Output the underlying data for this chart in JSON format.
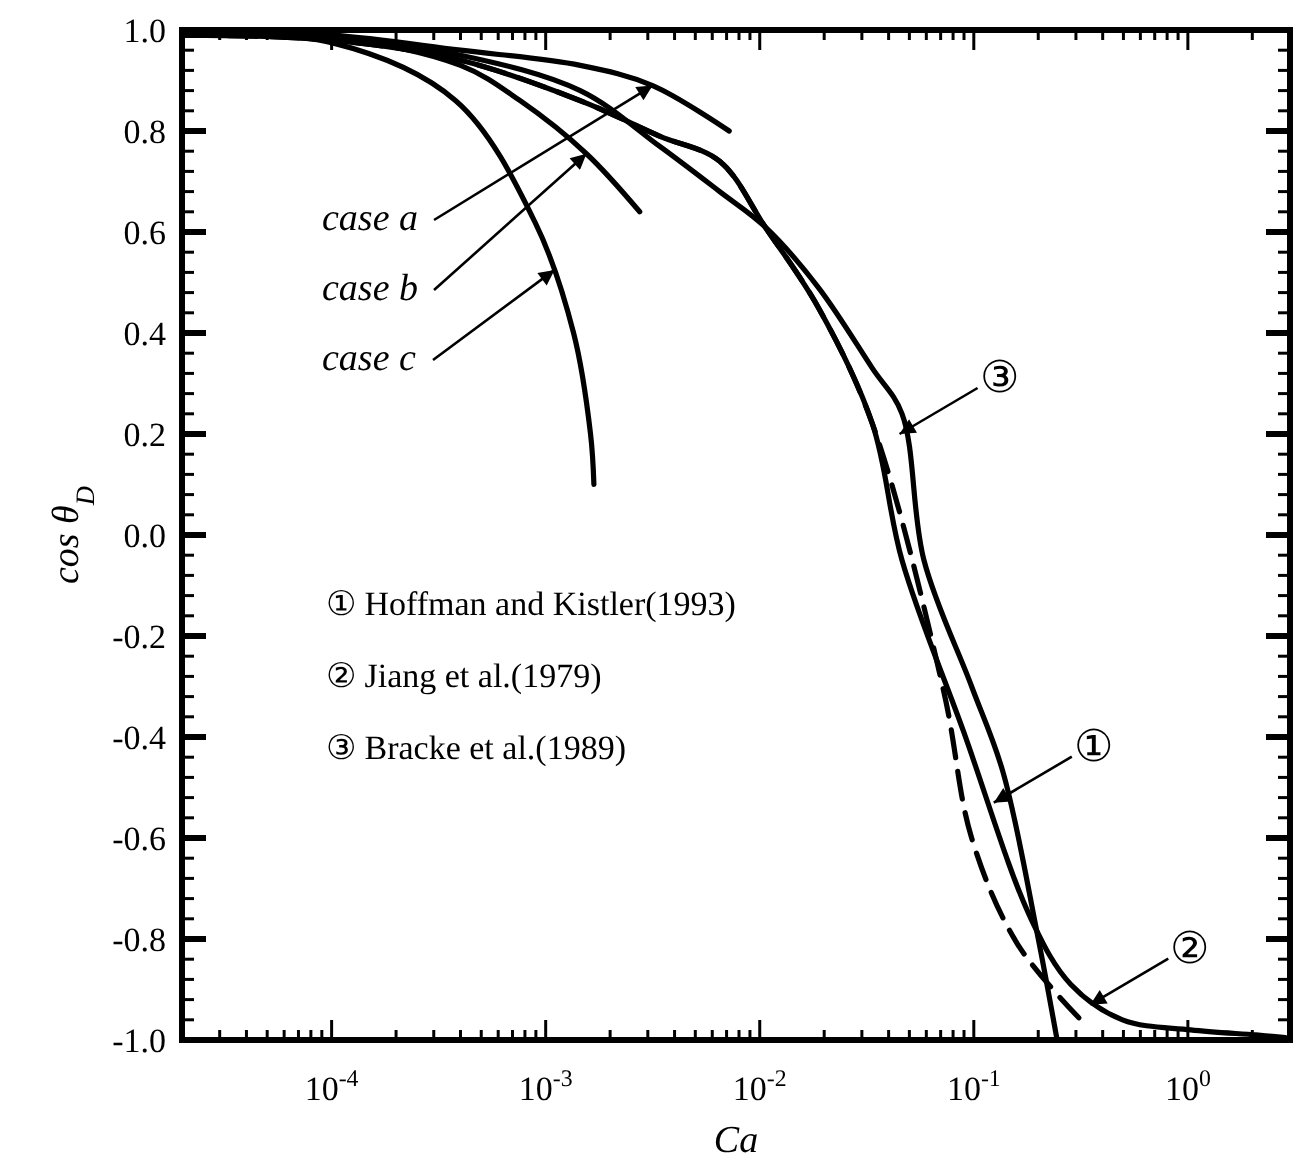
{
  "chart_data": {
    "type": "line",
    "xlabel": "Ca",
    "ylabel": "cos θ$_{D}$",
    "log": "x",
    "xlim": [
      2e-05,
      3
    ],
    "ylim": [
      -1,
      1
    ],
    "xticks": [
      {
        "value": 3e-05,
        "label": null
      },
      {
        "value": 4e-05,
        "label": null
      },
      {
        "value": 5e-05,
        "label": null
      },
      {
        "value": 6e-05,
        "label": null
      },
      {
        "value": 7e-05,
        "label": null
      },
      {
        "value": 8e-05,
        "label": null
      },
      {
        "value": 9e-05,
        "label": null
      },
      {
        "value": 0.0001,
        "label": "10$^{-4}$"
      },
      {
        "value": 0.0002,
        "label": null
      },
      {
        "value": 0.0003,
        "label": null
      },
      {
        "value": 0.0004,
        "label": null
      },
      {
        "value": 0.0005,
        "label": null
      },
      {
        "value": 0.0006,
        "label": null
      },
      {
        "value": 0.0007,
        "label": null
      },
      {
        "value": 0.0008,
        "label": null
      },
      {
        "value": 0.0009,
        "label": null
      },
      {
        "value": 0.001,
        "label": "10$^{-3}$"
      },
      {
        "value": 0.002,
        "label": null
      },
      {
        "value": 0.003,
        "label": null
      },
      {
        "value": 0.004,
        "label": null
      },
      {
        "value": 0.005,
        "label": null
      },
      {
        "value": 0.006,
        "label": null
      },
      {
        "value": 0.007,
        "label": null
      },
      {
        "value": 0.008,
        "label": null
      },
      {
        "value": 0.009,
        "label": null
      },
      {
        "value": 0.01,
        "label": "10$^{-2}$"
      },
      {
        "value": 0.02,
        "label": null
      },
      {
        "value": 0.03,
        "label": null
      },
      {
        "value": 0.04,
        "label": null
      },
      {
        "value": 0.05,
        "label": null
      },
      {
        "value": 0.06,
        "label": null
      },
      {
        "value": 0.07,
        "label": null
      },
      {
        "value": 0.08,
        "label": null
      },
      {
        "value": 0.09,
        "label": null
      },
      {
        "value": 0.1,
        "label": "10$^{-1}$"
      },
      {
        "value": 0.2,
        "label": null
      },
      {
        "value": 0.3,
        "label": null
      },
      {
        "value": 0.4,
        "label": null
      },
      {
        "value": 0.5,
        "label": null
      },
      {
        "value": 0.6,
        "label": null
      },
      {
        "value": 0.7,
        "label": null
      },
      {
        "value": 0.8,
        "label": null
      },
      {
        "value": 0.9,
        "label": null
      },
      {
        "value": 1,
        "label": "10$^{0}$"
      },
      {
        "value": 2,
        "label": null
      }
    ],
    "yticks": [
      {
        "value": -1,
        "label": "-1.0"
      },
      {
        "value": -0.8,
        "label": "-0.8"
      },
      {
        "value": -0.6,
        "label": "-0.6"
      },
      {
        "value": -0.4,
        "label": "-0.4"
      },
      {
        "value": -0.2,
        "label": "-0.2"
      },
      {
        "value": 0,
        "label": "0.0"
      },
      {
        "value": 0.2,
        "label": "0.2"
      },
      {
        "value": 0.4,
        "label": "0.4"
      },
      {
        "value": 0.6,
        "label": "0.6"
      },
      {
        "value": 0.8,
        "label": "0.8"
      },
      {
        "value": 1,
        "label": "1.0"
      },
      {
        "value": -0.96,
        "label": null
      },
      {
        "value": -0.92,
        "label": null
      },
      {
        "value": -0.88,
        "label": null
      },
      {
        "value": -0.84,
        "label": null
      },
      {
        "value": -0.76,
        "label": null
      },
      {
        "value": -0.72,
        "label": null
      },
      {
        "value": -0.68,
        "label": null
      },
      {
        "value": -0.64,
        "label": null
      },
      {
        "value": -0.56,
        "label": null
      },
      {
        "value": -0.52,
        "label": null
      },
      {
        "value": -0.48,
        "label": null
      },
      {
        "value": -0.44,
        "label": null
      },
      {
        "value": -0.36,
        "label": null
      },
      {
        "value": -0.32,
        "label": null
      },
      {
        "value": -0.28,
        "label": null
      },
      {
        "value": -0.24,
        "label": null
      },
      {
        "value": -0.16,
        "label": null
      },
      {
        "value": -0.12,
        "label": null
      },
      {
        "value": -0.08,
        "label": null
      },
      {
        "value": -0.04,
        "label": null
      },
      {
        "value": 0.04,
        "label": null
      },
      {
        "value": 0.08,
        "label": null
      },
      {
        "value": 0.12,
        "label": null
      },
      {
        "value": 0.16,
        "label": null
      },
      {
        "value": 0.24,
        "label": null
      },
      {
        "value": 0.28,
        "label": null
      },
      {
        "value": 0.32,
        "label": null
      },
      {
        "value": 0.36,
        "label": null
      },
      {
        "value": 0.44,
        "label": null
      },
      {
        "value": 0.48,
        "label": null
      },
      {
        "value": 0.52,
        "label": null
      },
      {
        "value": 0.56,
        "label": null
      },
      {
        "value": 0.64,
        "label": null
      },
      {
        "value": 0.68,
        "label": null
      },
      {
        "value": 0.72,
        "label": null
      },
      {
        "value": 0.76,
        "label": null
      },
      {
        "value": 0.84,
        "label": null
      },
      {
        "value": 0.88,
        "label": null
      },
      {
        "value": 0.92,
        "label": null
      },
      {
        "value": 0.96,
        "label": null
      }
    ],
    "series": [
      {
        "color": "#000000",
        "x": [
          2.1e-05,
          0.0001,
          0.0004,
          0.00145,
          0.0034,
          0.0065,
          0.0106,
          0.0188,
          0.0336,
          0.0462,
          0.0897,
          0.185,
          0.284,
          0.495,
          1.03,
          2.08,
          2.86
        ],
        "values": [
          0.99,
          0.98,
          0.94,
          0.86,
          0.79,
          0.74,
          0.61,
          0.45,
          0.22,
          -0.05,
          -0.39,
          -0.76,
          -0.89,
          -0.96,
          -0.98,
          -0.99,
          -0.995
        ]
      },
      {
        "color": "#000000",
        "line_style": "dashed",
        "x": [
          2.1e-05,
          0.0001,
          0.0004,
          0.00145,
          0.0034,
          0.0065,
          0.0106,
          0.0188,
          0.0336,
          0.0724,
          0.0977,
          0.16,
          0.316
        ],
        "values": [
          0.99,
          0.98,
          0.94,
          0.86,
          0.79,
          0.74,
          0.61,
          0.45,
          0.22,
          -0.31,
          -0.6,
          -0.81,
          -0.96
        ]
      },
      {
        "color": "#000000",
        "x": [
          2.1e-05,
          0.0001,
          0.0004,
          0.00145,
          0.0034,
          0.0065,
          0.0106,
          0.0188,
          0.0336,
          0.0462,
          0.0585,
          0.0977,
          0.137,
          0.198,
          0.245
        ],
        "values": [
          0.99,
          0.985,
          0.95,
          0.88,
          0.77,
          0.68,
          0.61,
          0.49,
          0.33,
          0.24,
          -0.05,
          -0.3,
          -0.47,
          -0.79,
          -1
        ]
      },
      {
        "color": "#000000",
        "x": [
          2.1e-05,
          0.0001,
          0.0004,
          0.00145,
          0.00316,
          0.0072
        ],
        "values": [
          0.995,
          0.99,
          0.96,
          0.93,
          0.89,
          0.8
        ]
      },
      {
        "color": "#000000",
        "x": [
          2.1e-05,
          0.0001,
          0.0004,
          0.00076,
          0.00155,
          0.00275
        ],
        "values": [
          0.99,
          0.985,
          0.93,
          0.86,
          0.755,
          0.64
        ]
      },
      {
        "color": "#000000",
        "x": [
          2.1e-05,
          0.0001,
          0.00038,
          0.00089,
          0.00135,
          0.00162,
          0.00168
        ],
        "values": [
          0.99,
          0.975,
          0.86,
          0.62,
          0.4,
          0.2,
          0.1
        ]
      }
    ],
    "annotations": [
      "① Hoffman and Kistler(1993)",
      "② Jiang et al.(1979)",
      "③ Bracke et al.(1989)",
      {
        "text": "case a",
        "x": 0.00316,
        "y": 0.89
      },
      {
        "text": "case b",
        "x": 0.00155,
        "y": 0.755
      },
      {
        "text": "case c",
        "x": 0.0011,
        "y": 0.525
      },
      {
        "text": "①",
        "x": 0.124,
        "y": -0.53
      },
      {
        "text": "②",
        "x": 0.35,
        "y": -0.93
      },
      {
        "text": "③",
        "x": 0.045,
        "y": 0.2
      }
    ]
  }
}
